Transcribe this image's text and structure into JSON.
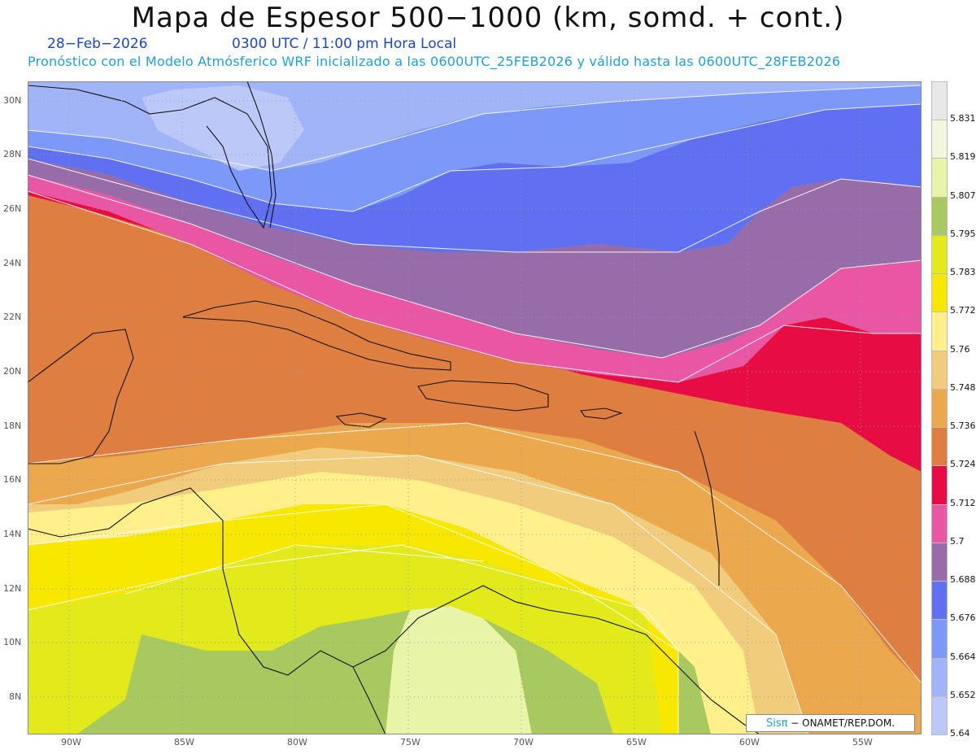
{
  "title": "Mapa de Espesor 500−1000 (km, somd. + cont.)",
  "date": "28−Feb−2026",
  "time": "0300 UTC / 11:00 pm Hora Local",
  "forecast": "Pronóstico con el Modelo Atmósferico WRF inicializado a las 0600UTC_25FEB2026 y válido hasta las  0600UTC_28FEB2026",
  "lat_labels": [
    "30N",
    "28N",
    "26N",
    "24N",
    "22N",
    "20N",
    "18N",
    "16N",
    "14N",
    "12N",
    "10N",
    "8N"
  ],
  "lon_labels": [
    "90W",
    "85W",
    "80W",
    "75W",
    "70W",
    "65W",
    "60W",
    "55W"
  ],
  "legend": {
    "labels": [
      "5.831",
      "5.819",
      "5.807",
      "5.795",
      "5.783",
      "5.772",
      "5.76",
      "5.748",
      "5.736",
      "5.724",
      "5.712",
      "5.7",
      "5.688",
      "5.676",
      "5.664",
      "5.652",
      "5.64"
    ],
    "colors": [
      "#e8e8e8",
      "#f2f6dc",
      "#e8f4a8",
      "#a8c860",
      "#e2ea1c",
      "#f8e800",
      "#fff08c",
      "#f0cc7c",
      "#eca84c",
      "#de7e40",
      "#e80c44",
      "#e856a4",
      "#986ca8",
      "#6070f0",
      "#7c98f8",
      "#a2b4f8",
      "#bcc8f8"
    ]
  },
  "credit": {
    "brand": "Sisπ",
    "text": "− ONAMET/REP.DOM."
  }
}
